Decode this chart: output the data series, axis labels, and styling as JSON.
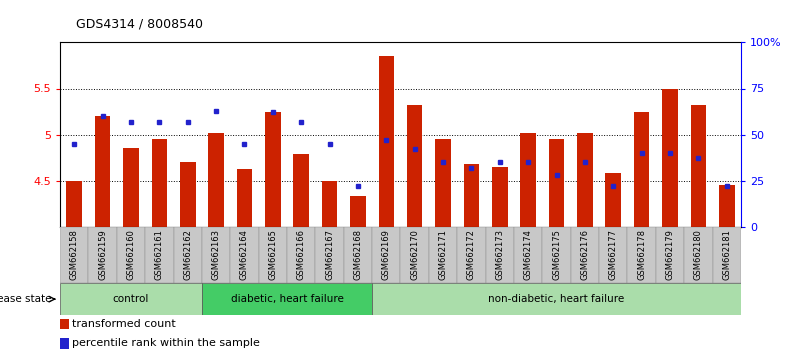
{
  "title": "GDS4314 / 8008540",
  "samples": [
    "GSM662158",
    "GSM662159",
    "GSM662160",
    "GSM662161",
    "GSM662162",
    "GSM662163",
    "GSM662164",
    "GSM662165",
    "GSM662166",
    "GSM662167",
    "GSM662168",
    "GSM662169",
    "GSM662170",
    "GSM662171",
    "GSM662172",
    "GSM662173",
    "GSM662174",
    "GSM662175",
    "GSM662176",
    "GSM662177",
    "GSM662178",
    "GSM662179",
    "GSM662180",
    "GSM662181"
  ],
  "red_values": [
    4.5,
    5.2,
    4.85,
    4.95,
    4.7,
    5.02,
    4.63,
    5.25,
    4.79,
    4.5,
    4.33,
    5.85,
    5.32,
    4.95,
    4.68,
    4.65,
    5.02,
    4.95,
    5.02,
    4.58,
    5.25,
    5.5,
    5.32,
    4.45
  ],
  "blue_values_pct": [
    45,
    60,
    57,
    57,
    57,
    63,
    45,
    62,
    57,
    45,
    22,
    47,
    42,
    35,
    32,
    35,
    35,
    28,
    35,
    22,
    40,
    40,
    37,
    22
  ],
  "ylim_left": [
    4.0,
    6.0
  ],
  "ylim_right": [
    0,
    100
  ],
  "yticks_left": [
    4.5,
    5.0,
    5.5
  ],
  "ytick_labels_left": [
    "4.5",
    "5",
    "5.5"
  ],
  "yticks_right": [
    0,
    25,
    50,
    75,
    100
  ],
  "ytick_labels_right": [
    "0",
    "25",
    "50",
    "75",
    "100%"
  ],
  "groups": [
    {
      "label": "control",
      "start": 0,
      "end": 5
    },
    {
      "label": "diabetic, heart failure",
      "start": 5,
      "end": 11
    },
    {
      "label": "non-diabetic, heart failure",
      "start": 11,
      "end": 24
    }
  ],
  "group_colors": [
    "#aaddaa",
    "#44cc66",
    "#aaddaa"
  ],
  "bar_color": "#CC2200",
  "blue_color": "#2222CC",
  "bar_bottom": 4.0,
  "disease_state_label": "disease state",
  "legend_items": [
    {
      "color": "#CC2200",
      "label": "transformed count"
    },
    {
      "color": "#2222CC",
      "label": "percentile rank within the sample"
    }
  ]
}
